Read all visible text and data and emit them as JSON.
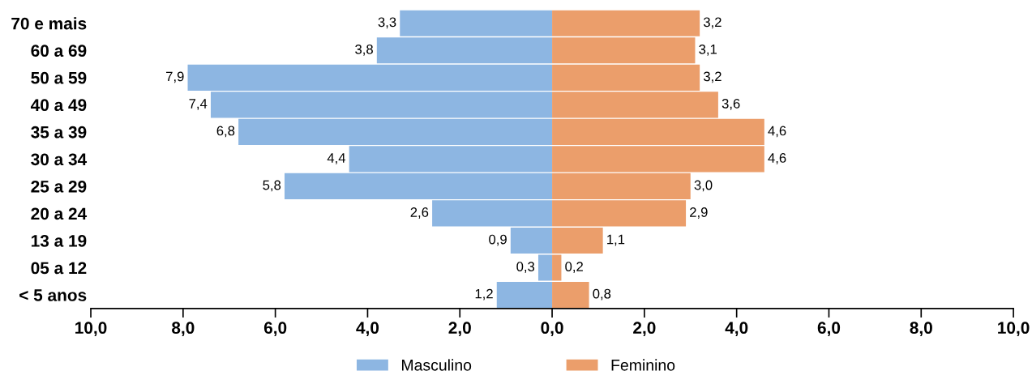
{
  "chart_data": {
    "type": "bar",
    "orientation": "horizontal",
    "categories": [
      "70 e mais",
      "60 a 69",
      "50 a 59",
      "40 a 49",
      "35 a 39",
      "30 a 34",
      "25 a 29",
      "20 a 24",
      "13 a 19",
      "05 a 12",
      "< 5 anos"
    ],
    "series": [
      {
        "name": "Masculino",
        "color": "#8db6e2",
        "values": [
          3.3,
          3.8,
          7.9,
          7.4,
          6.8,
          4.4,
          5.8,
          2.6,
          0.9,
          0.3,
          1.2
        ],
        "base": [
          -3.3,
          -3.8,
          -7.9,
          -7.4,
          -6.8,
          -4.4,
          -5.8,
          -2.6,
          -0.9,
          -0.3,
          -1.2
        ],
        "value_labels": [
          "3,3",
          "3,8",
          "7,9",
          "7,4",
          "6,8",
          "4,4",
          "5,8",
          "2,6",
          "0,9",
          "0,3",
          "1,2"
        ]
      },
      {
        "name": "Feminino",
        "color": "#eb9e6b",
        "values": [
          3.2,
          3.1,
          3.2,
          3.6,
          4.6,
          4.6,
          3.0,
          2.9,
          1.1,
          0.2,
          0.8
        ],
        "value_labels": [
          "3,2",
          "3,1",
          "3,2",
          "3,6",
          "4,6",
          "4,6",
          "3,0",
          "2,9",
          "1,1",
          "0,2",
          "0,8"
        ]
      }
    ],
    "xlim": [
      -10,
      10
    ],
    "xticks": [
      {
        "value": -10,
        "label": "10,0"
      },
      {
        "value": -8,
        "label": "8,0"
      },
      {
        "value": -6,
        "label": "6,0"
      },
      {
        "value": -4,
        "label": "4,0"
      },
      {
        "value": -2,
        "label": "2,0"
      },
      {
        "value": 0,
        "label": "0,0"
      },
      {
        "value": 2,
        "label": "2,0"
      },
      {
        "value": 4,
        "label": "4,0"
      },
      {
        "value": 6,
        "label": "6,0"
      },
      {
        "value": 8,
        "label": "8,0"
      },
      {
        "value": 10,
        "label": "10,0"
      }
    ],
    "grid": false,
    "legend": "bottom"
  }
}
